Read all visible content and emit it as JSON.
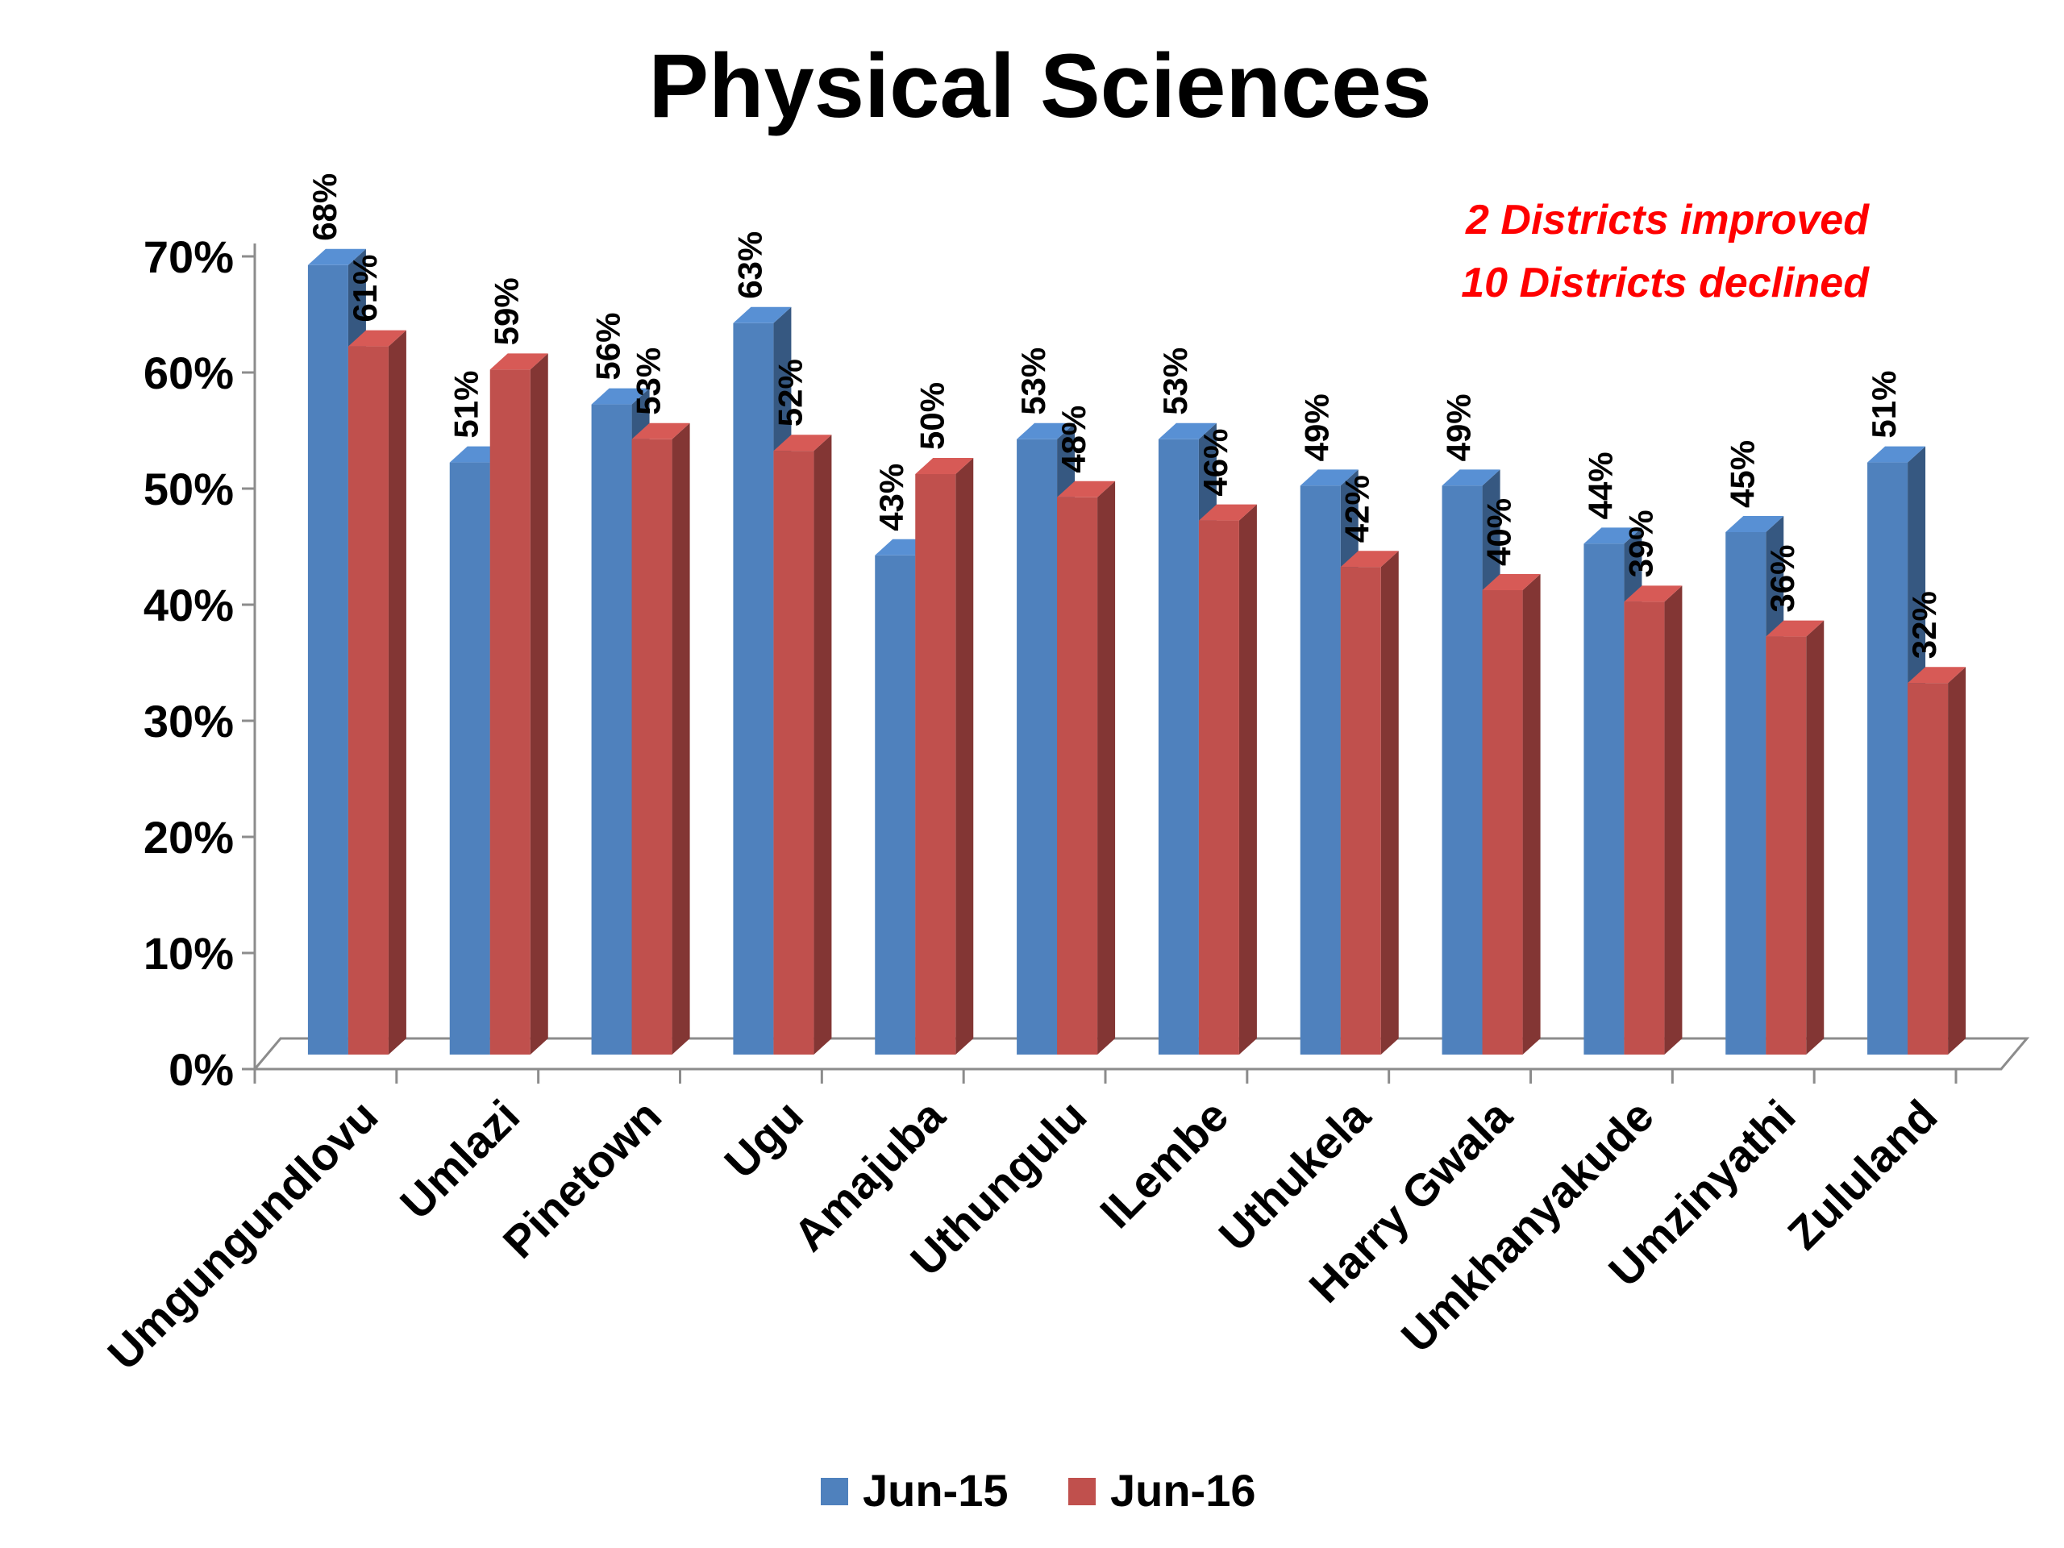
{
  "chart_data": {
    "type": "bar",
    "title": "Physical Sciences",
    "categories": [
      "Umgungundlovu",
      "Umlazi",
      "Pinetown",
      "Ugu",
      "Amajuba",
      "Uthungulu",
      "ILembe",
      "Uthukela",
      "Harry Gwala",
      "Umkhanyakude",
      "Umzinyathi",
      "Zululand"
    ],
    "series": [
      {
        "name": "Jun-15",
        "values": [
          68,
          51,
          56,
          63,
          43,
          53,
          53,
          49,
          49,
          44,
          45,
          51
        ],
        "color": "#4F81BD"
      },
      {
        "name": "Jun-16",
        "values": [
          61,
          59,
          53,
          52,
          50,
          48,
          46,
          42,
          40,
          39,
          36,
          32
        ],
        "color": "#C0504D"
      }
    ],
    "ylim": [
      0,
      70
    ],
    "yticks": [
      "0%",
      "10%",
      "20%",
      "30%",
      "40%",
      "50%",
      "60%",
      "70%"
    ],
    "value_suffix": "%",
    "xlabel": "",
    "ylabel": "",
    "legend": "bottom",
    "grid": false,
    "annotations": [
      "2 Districts improved",
      "10 Districts declined"
    ]
  }
}
